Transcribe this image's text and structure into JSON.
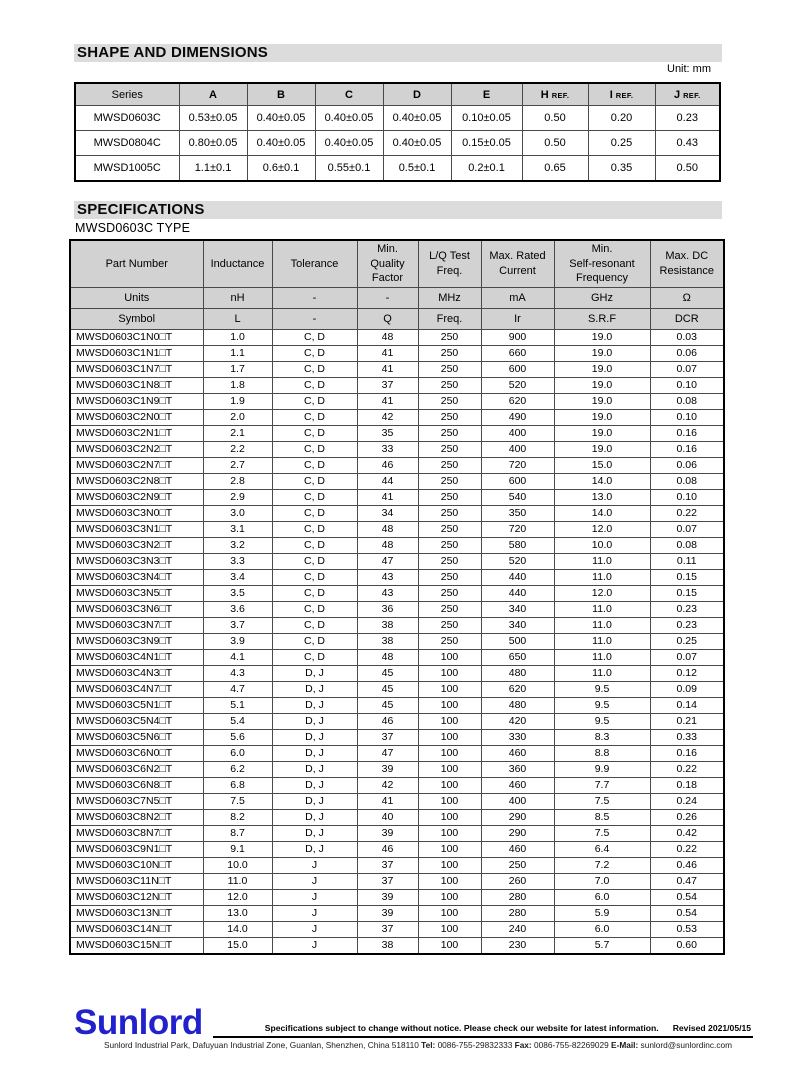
{
  "titles": {
    "shape": "SHAPE AND DIMENSIONS",
    "spec": "SPECIFICATIONS",
    "spec_subtitle": "MWSD0603C TYPE",
    "unit_note": "Unit: mm"
  },
  "colors": {
    "title_bar_bg": "#dcdcdc",
    "table_header_bg": "#d2d2d2",
    "logo_blue": "#2222cc"
  },
  "dimensions_table": {
    "headers": [
      {
        "text": "Series"
      },
      {
        "text": "A"
      },
      {
        "text": "B"
      },
      {
        "text": "C"
      },
      {
        "text": "D"
      },
      {
        "text": "E"
      },
      {
        "text": "H",
        "suffix": "REF."
      },
      {
        "text": "I",
        "suffix": "REF."
      },
      {
        "text": "J",
        "suffix": "REF."
      }
    ],
    "rows": [
      [
        "MWSD0603C",
        "0.53±0.05",
        "0.40±0.05",
        "0.40±0.05",
        "0.40±0.05",
        "0.10±0.05",
        "0.50",
        "0.20",
        "0.23"
      ],
      [
        "MWSD0804C",
        "0.80±0.05",
        "0.40±0.05",
        "0.40±0.05",
        "0.40±0.05",
        "0.15±0.05",
        "0.50",
        "0.25",
        "0.43"
      ],
      [
        "MWSD1005C",
        "1.1±0.1",
        "0.6±0.1",
        "0.55±0.1",
        "0.5±0.1",
        "0.2±0.1",
        "0.65",
        "0.35",
        "0.50"
      ]
    ]
  },
  "spec_table": {
    "headers": [
      "Part Number",
      "Inductance",
      "Tolerance",
      "Min.\nQuality\nFactor",
      "L/Q Test\nFreq.",
      "Max. Rated\nCurrent",
      "Min.\nSelf-resonant\nFrequency",
      "Max. DC\nResistance"
    ],
    "units_row": [
      "Units",
      "nH",
      "-",
      "-",
      "MHz",
      "mA",
      "GHz",
      "Ω"
    ],
    "symbol_row": [
      "Symbol",
      "L",
      "-",
      "Q",
      "Freq.",
      "Ir",
      "S.R.F",
      "DCR"
    ],
    "rows": [
      [
        "MWSD0603C1N0□T",
        "1.0",
        "C、D",
        "48",
        "250",
        "900",
        "19.0",
        "0.03"
      ],
      [
        "MWSD0603C1N1□T",
        "1.1",
        "C、D",
        "41",
        "250",
        "660",
        "19.0",
        "0.06"
      ],
      [
        "MWSD0603C1N7□T",
        "1.7",
        "C、D",
        "41",
        "250",
        "600",
        "19.0",
        "0.07"
      ],
      [
        "MWSD0603C1N8□T",
        "1.8",
        "C、D",
        "37",
        "250",
        "520",
        "19.0",
        "0.10"
      ],
      [
        "MWSD0603C1N9□T",
        "1.9",
        "C、D",
        "41",
        "250",
        "620",
        "19.0",
        "0.08"
      ],
      [
        "MWSD0603C2N0□T",
        "2.0",
        "C、D",
        "42",
        "250",
        "490",
        "19.0",
        "0.10"
      ],
      [
        "MWSD0603C2N1□T",
        "2.1",
        "C、D",
        "35",
        "250",
        "400",
        "19.0",
        "0.16"
      ],
      [
        "MWSD0603C2N2□T",
        "2.2",
        "C、D",
        "33",
        "250",
        "400",
        "19.0",
        "0.16"
      ],
      [
        "MWSD0603C2N7□T",
        "2.7",
        "C、D",
        "46",
        "250",
        "720",
        "15.0",
        "0.06"
      ],
      [
        "MWSD0603C2N8□T",
        "2.8",
        "C、D",
        "44",
        "250",
        "600",
        "14.0",
        "0.08"
      ],
      [
        "MWSD0603C2N9□T",
        "2.9",
        "C、D",
        "41",
        "250",
        "540",
        "13.0",
        "0.10"
      ],
      [
        "MWSD0603C3N0□T",
        "3.0",
        "C、D",
        "34",
        "250",
        "350",
        "14.0",
        "0.22"
      ],
      [
        "MWSD0603C3N1□T",
        "3.1",
        "C、D",
        "48",
        "250",
        "720",
        "12.0",
        "0.07"
      ],
      [
        "MWSD0603C3N2□T",
        "3.2",
        "C、D",
        "48",
        "250",
        "580",
        "10.0",
        "0.08"
      ],
      [
        "MWSD0603C3N3□T",
        "3.3",
        "C、D",
        "47",
        "250",
        "520",
        "11.0",
        "0.11"
      ],
      [
        "MWSD0603C3N4□T",
        "3.4",
        "C、D",
        "43",
        "250",
        "440",
        "11.0",
        "0.15"
      ],
      [
        "MWSD0603C3N5□T",
        "3.5",
        "C、D",
        "43",
        "250",
        "440",
        "12.0",
        "0.15"
      ],
      [
        "MWSD0603C3N6□T",
        "3.6",
        "C、D",
        "36",
        "250",
        "340",
        "11.0",
        "0.23"
      ],
      [
        "MWSD0603C3N7□T",
        "3.7",
        "C、D",
        "38",
        "250",
        "340",
        "11.0",
        "0.23"
      ],
      [
        "MWSD0603C3N9□T",
        "3.9",
        "C、D",
        "38",
        "250",
        "500",
        "11.0",
        "0.25"
      ],
      [
        "MWSD0603C4N1□T",
        "4.1",
        "C、D",
        "48",
        "100",
        "650",
        "11.0",
        "0.07"
      ],
      [
        "MWSD0603C4N3□T",
        "4.3",
        "D、J",
        "45",
        "100",
        "480",
        "11.0",
        "0.12"
      ],
      [
        "MWSD0603C4N7□T",
        "4.7",
        "D、J",
        "45",
        "100",
        "620",
        "9.5",
        "0.09"
      ],
      [
        "MWSD0603C5N1□T",
        "5.1",
        "D、J",
        "45",
        "100",
        "480",
        "9.5",
        "0.14"
      ],
      [
        "MWSD0603C5N4□T",
        "5.4",
        "D、J",
        "46",
        "100",
        "420",
        "9.5",
        "0.21"
      ],
      [
        "MWSD0603C5N6□T",
        "5.6",
        "D、J",
        "37",
        "100",
        "330",
        "8.3",
        "0.33"
      ],
      [
        "MWSD0603C6N0□T",
        "6.0",
        "D、J",
        "47",
        "100",
        "460",
        "8.8",
        "0.16"
      ],
      [
        "MWSD0603C6N2□T",
        "6.2",
        "D、J",
        "39",
        "100",
        "360",
        "9.9",
        "0.22"
      ],
      [
        "MWSD0603C6N8□T",
        "6.8",
        "D、J",
        "42",
        "100",
        "460",
        "7.7",
        "0.18"
      ],
      [
        "MWSD0603C7N5□T",
        "7.5",
        "D、J",
        "41",
        "100",
        "400",
        "7.5",
        "0.24"
      ],
      [
        "MWSD0603C8N2□T",
        "8.2",
        "D、J",
        "40",
        "100",
        "290",
        "8.5",
        "0.26"
      ],
      [
        "MWSD0603C8N7□T",
        "8.7",
        "D、J",
        "39",
        "100",
        "290",
        "7.5",
        "0.42"
      ],
      [
        "MWSD0603C9N1□T",
        "9.1",
        "D、J",
        "46",
        "100",
        "460",
        "6.4",
        "0.22"
      ],
      [
        "MWSD0603C10N□T",
        "10.0",
        "J",
        "37",
        "100",
        "250",
        "7.2",
        "0.46"
      ],
      [
        "MWSD0603C11N□T",
        "11.0",
        "J",
        "37",
        "100",
        "260",
        "7.0",
        "0.47"
      ],
      [
        "MWSD0603C12N□T",
        "12.0",
        "J",
        "39",
        "100",
        "280",
        "6.0",
        "0.54"
      ],
      [
        "MWSD0603C13N□T",
        "13.0",
        "J",
        "39",
        "100",
        "280",
        "5.9",
        "0.54"
      ],
      [
        "MWSD0603C14N□T",
        "14.0",
        "J",
        "37",
        "100",
        "240",
        "6.0",
        "0.53"
      ],
      [
        "MWSD0603C15N□T",
        "15.0",
        "J",
        "38",
        "100",
        "230",
        "5.7",
        "0.60"
      ]
    ]
  },
  "footer": {
    "logo": "Sunlord",
    "notice": "Specifications subject to change without notice. Please check our website for latest information.",
    "revised": "Revised 2021/05/15",
    "address_parts": [
      {
        "text": "Sunlord Industrial Park, Dafuyuan Industrial Zone, Guanlan, Shenzhen, China 518110 ",
        "bold": false
      },
      {
        "text": "Tel:",
        "bold": true
      },
      {
        "text": " 0086-755-29832333 ",
        "bold": false
      },
      {
        "text": "Fax:",
        "bold": true
      },
      {
        "text": " 0086-755-82269029 ",
        "bold": false
      },
      {
        "text": "E-Mail:",
        "bold": true
      },
      {
        "text": " sunlord@sunlordinc.com",
        "bold": false,
        "email": true
      }
    ]
  }
}
